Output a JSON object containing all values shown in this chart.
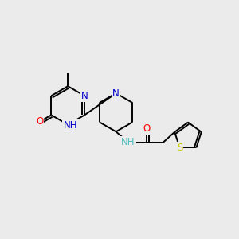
{
  "background_color": "#ebebeb",
  "bond_color": "#000000",
  "atom_colors": {
    "N": "#0000cc",
    "O": "#ff0000",
    "S": "#cccc00",
    "NH": "#4dbfbf",
    "C": "#000000"
  },
  "line_width": 1.4,
  "font_size": 8.5,
  "figsize": [
    3.0,
    3.0
  ],
  "dpi": 100,
  "xlim": [
    0,
    10
  ],
  "ylim": [
    0,
    10
  ]
}
